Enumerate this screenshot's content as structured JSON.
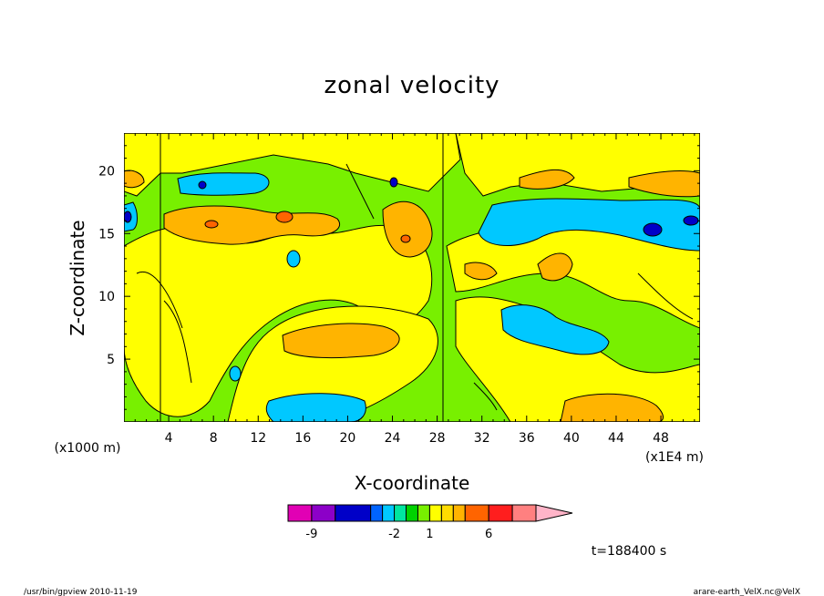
{
  "chart_data": {
    "type": "heatmap",
    "title": "zonal velocity",
    "xlabel": "X-coordinate",
    "ylabel": "Z-coordinate",
    "x_unit_left": "(x1000 m)",
    "x_unit_right": "(x1E4 m)",
    "xlim": [
      0,
      51.5
    ],
    "ylim": [
      0,
      23
    ],
    "x_ticks": [
      "4",
      "8",
      "12",
      "16",
      "20",
      "24",
      "28",
      "32",
      "36",
      "40",
      "44",
      "48"
    ],
    "x_tick_values": [
      4,
      8,
      12,
      16,
      20,
      24,
      28,
      32,
      36,
      40,
      44,
      48
    ],
    "y_ticks": [
      "5",
      "10",
      "15",
      "20"
    ],
    "y_tick_values": [
      5,
      10,
      15,
      20
    ],
    "grid": false,
    "colorbar": {
      "levels": [
        -11,
        -9,
        -7,
        -4,
        -3,
        -2,
        -1,
        0,
        1,
        2,
        3,
        4,
        6,
        8,
        10
      ],
      "labels": [
        "-9",
        "-2",
        "1",
        "6"
      ],
      "label_values": [
        -9,
        -2,
        1,
        6
      ],
      "colors": [
        "#e100b4",
        "#8c00c8",
        "#0000c8",
        "#0064ff",
        "#00c8ff",
        "#00e6a0",
        "#00d200",
        "#78f000",
        "#ffff00",
        "#ffdc00",
        "#ffb400",
        "#ff6400",
        "#ff1e1e",
        "#ff8080",
        "#ffb4c8"
      ]
    },
    "annotation": "t=188400 s"
  },
  "footer": {
    "left": "/usr/bin/gpview   2010-11-19",
    "right": "arare-earth_VelX.nc@VelX"
  }
}
